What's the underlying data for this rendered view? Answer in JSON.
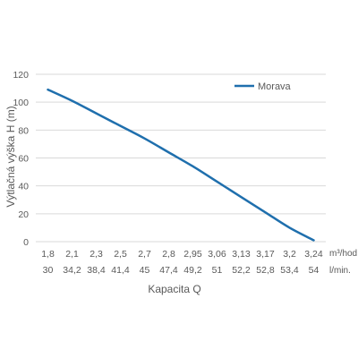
{
  "chart_data": {
    "type": "line",
    "xlabel": "Kapacita Q",
    "ylabel": "Výtlačná výška H (m)",
    "ylim": [
      0,
      120
    ],
    "yticks": [
      0,
      20,
      40,
      60,
      80,
      100,
      120
    ],
    "grid": true,
    "legend_position": "top-right",
    "categories_m3h": [
      "1,8",
      "2,1",
      "2,3",
      "2,5",
      "2,7",
      "2,8",
      "2,95",
      "3,06",
      "3,13",
      "3,17",
      "3,2",
      "3,24"
    ],
    "categories_lmin": [
      "30",
      "34,2",
      "38,4",
      "41,4",
      "45",
      "47,4",
      "49,2",
      "51",
      "52,2",
      "52,8",
      "53,4",
      "54"
    ],
    "unit_m3h": "m³/hod.",
    "unit_lmin": "l/min.",
    "series": [
      {
        "name": "Morava",
        "color": "#1f6fad",
        "values": [
          109,
          101,
          92,
          83,
          74,
          64,
          54,
          43,
          32,
          21,
          10,
          1
        ]
      }
    ]
  }
}
